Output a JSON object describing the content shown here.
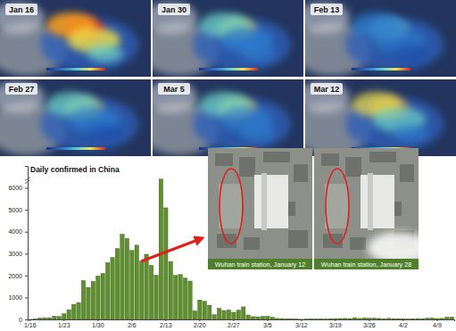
{
  "chart_data": {
    "type": "bar",
    "title": "Daily confirmed in China",
    "categories": [
      "1/16",
      null,
      null,
      null,
      null,
      null,
      null,
      "1/23",
      null,
      null,
      null,
      null,
      null,
      null,
      "1/30",
      null,
      null,
      null,
      null,
      null,
      null,
      "2/6",
      null,
      null,
      null,
      null,
      null,
      null,
      "2/13",
      null,
      null,
      null,
      null,
      null,
      null,
      "2/20",
      null,
      null,
      null,
      null,
      null,
      null,
      "2/27",
      null,
      null,
      null,
      null,
      null,
      null,
      "3/5",
      null,
      null,
      null,
      null,
      null,
      null,
      "3/12",
      null,
      null,
      null,
      null,
      null,
      null,
      "3/19",
      null,
      null,
      null,
      null,
      null,
      null,
      "3/26",
      null,
      null,
      null,
      null,
      null,
      null,
      "4/2",
      null,
      null,
      null,
      null,
      null,
      null,
      "4/9",
      null,
      null,
      null
    ],
    "values": [
      4,
      17,
      59,
      77,
      77,
      149,
      131,
      259,
      444,
      688,
      769,
      1771,
      1459,
      1737,
      1981,
      2099,
      2589,
      2825,
      3235,
      3884,
      3694,
      3143,
      3385,
      2652,
      2973,
      2467,
      2015,
      6400,
      5090,
      2641,
      2008,
      2048,
      1886,
      1749,
      391,
      889,
      823,
      648,
      214,
      508,
      406,
      433,
      327,
      427,
      573,
      202,
      125,
      119,
      139,
      143,
      99,
      44,
      40,
      19,
      24,
      15,
      8,
      11,
      20,
      16,
      21,
      13,
      34,
      39,
      41,
      46,
      39,
      78,
      47,
      67,
      55,
      54,
      45,
      31,
      48,
      36,
      35,
      31,
      19,
      30,
      39,
      32,
      62,
      63,
      42,
      46,
      99,
      108
    ],
    "color": "#5f8f2e",
    "ylim": [
      0,
      7000
    ],
    "yticks": [
      0,
      1000,
      2000,
      3000,
      4000,
      5000,
      6000
    ],
    "annotations": [
      "Wuhan train station, January 12",
      "Wuhan train station, January 28"
    ]
  },
  "map_panels": [
    {
      "label": "Jan 16"
    },
    {
      "label": "Jan 30"
    },
    {
      "label": "Feb 13"
    },
    {
      "label": "Feb 27"
    },
    {
      "label": "Mar 5"
    },
    {
      "label": "Mar 12"
    }
  ]
}
